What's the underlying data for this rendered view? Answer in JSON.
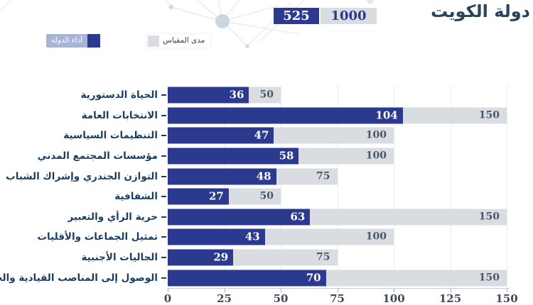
{
  "header": {
    "title": "دولة الكويت",
    "score": "525",
    "max_score": "1000"
  },
  "legend": {
    "state_performance": "أداء الدولة",
    "scale_range": "مدى المقياس"
  },
  "colors": {
    "bar_navy": "#2b398f",
    "track_gray": "#d9dde2",
    "title_blue": "#27455e",
    "category_label_blue": "#1b3e63",
    "legend_highlight": "#a9b3d5"
  },
  "chart_data": {
    "type": "bar",
    "orientation": "horizontal",
    "title": "دولة الكويت",
    "xlabel": "",
    "ylabel": "",
    "xlim": [
      0,
      150
    ],
    "xticks": [
      0,
      25,
      50,
      75,
      100,
      125,
      150
    ],
    "grid": true,
    "legend_position": "top-left",
    "categories": [
      "الحياة الدستورية",
      "الانتخابات العامة",
      "التنظيمات السياسية",
      "مؤسسات المجتمع المدني",
      "التوازن الجندري وإشراك الشباب",
      "الشفافية",
      "حرية الرأي والتعبير",
      "تمثيل الجماعات والأقليات",
      "الجاليات الأجنبية",
      "الوصول إلى المناصب القيادية والحساسية"
    ],
    "series": [
      {
        "name": "أداء الدولة",
        "color": "#2b398f",
        "values": [
          36,
          104,
          47,
          58,
          48,
          27,
          63,
          43,
          29,
          70
        ]
      },
      {
        "name": "مدى المقياس",
        "color": "#d9dde2",
        "values": [
          50,
          150,
          100,
          100,
          75,
          50,
          150,
          100,
          75,
          150
        ]
      }
    ]
  }
}
